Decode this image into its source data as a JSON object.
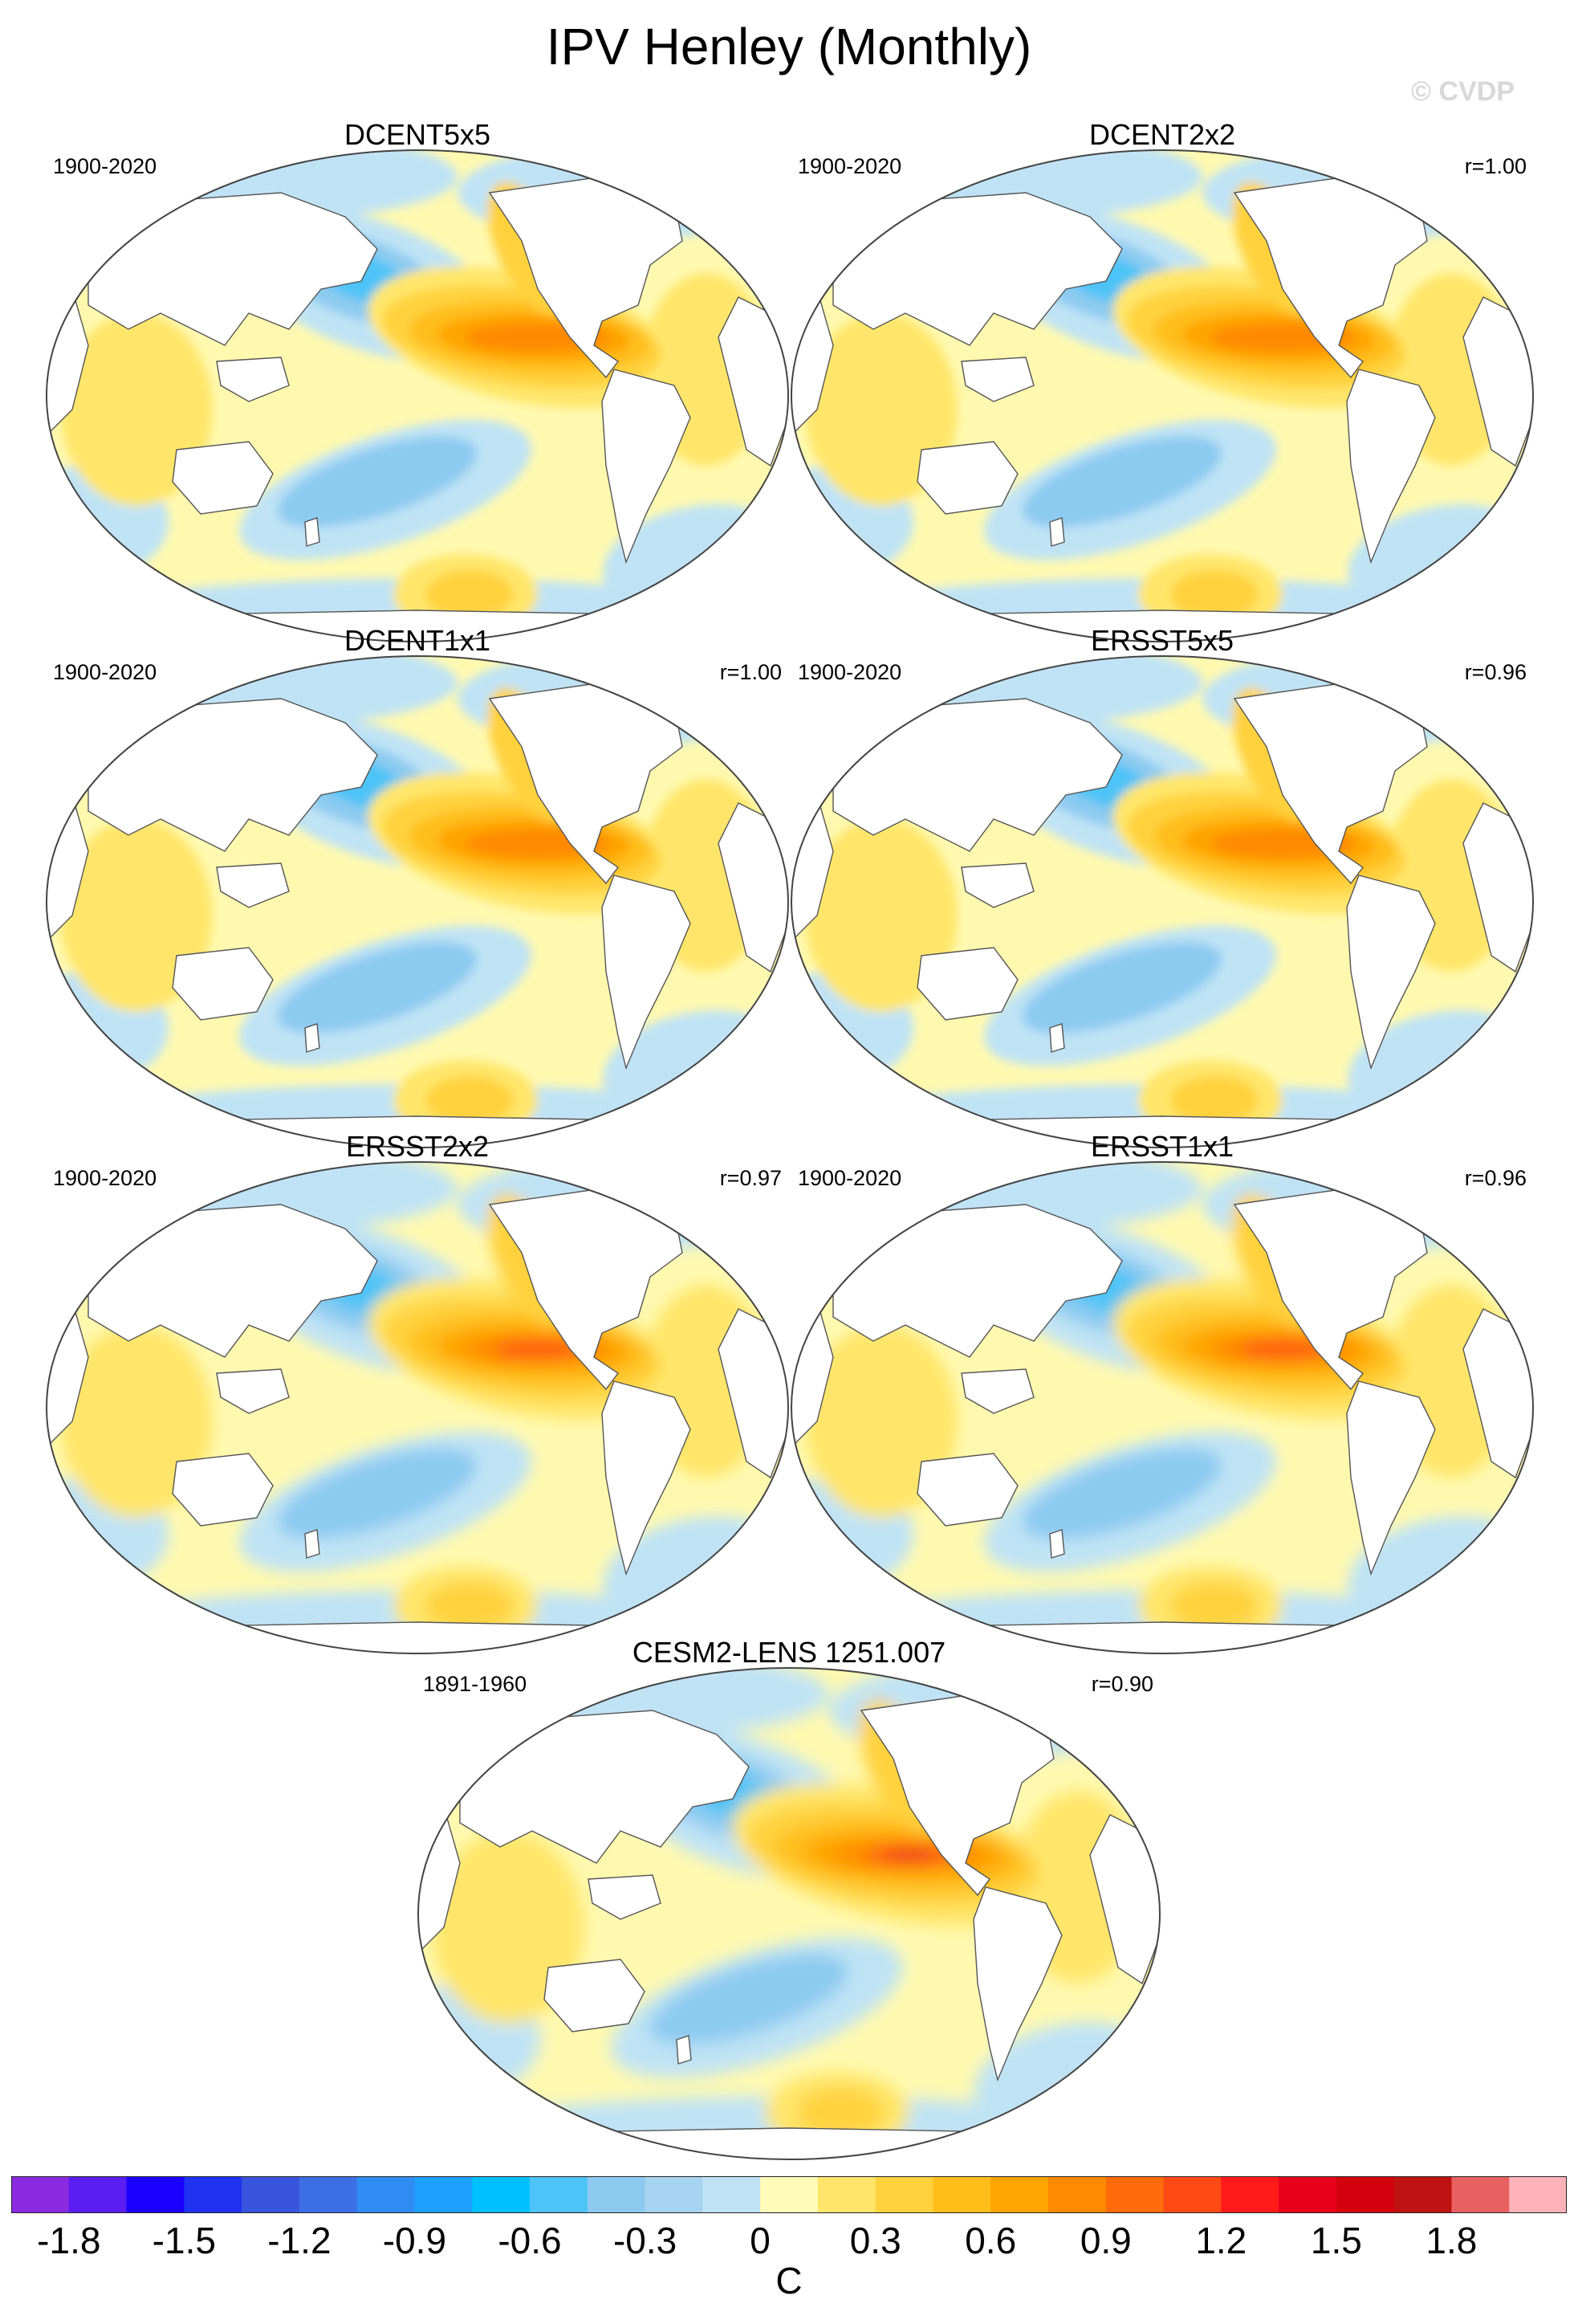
{
  "title": "IPV Henley (Monthly)",
  "watermark": "© CVDP",
  "panels": [
    {
      "title": "DCENT5x5",
      "years": "1900-2020",
      "r": "",
      "style": "coarse"
    },
    {
      "title": "DCENT2x2",
      "years": "1900-2020",
      "r": "r=1.00",
      "style": "coarse"
    },
    {
      "title": "DCENT1x1",
      "years": "1900-2020",
      "r": "r=1.00",
      "style": "coarse"
    },
    {
      "title": "ERSST5x5",
      "years": "1900-2020",
      "r": "r=0.96",
      "style": "coarse"
    },
    {
      "title": "ERSST2x2",
      "years": "1900-2020",
      "r": "r=0.97",
      "style": "smooth"
    },
    {
      "title": "ERSST1x1",
      "years": "1900-2020",
      "r": "r=0.96",
      "style": "smooth"
    },
    {
      "title": "CESM2-LENS 1251.007",
      "years": "1891-1960",
      "r": "r=0.90",
      "style": "model"
    }
  ],
  "colorbar": {
    "units": "C",
    "labels": [
      "-1.8",
      "-1.5",
      "-1.2",
      "-0.9",
      "-0.6",
      "-0.3",
      "0",
      "0.3",
      "0.6",
      "0.9",
      "1.2",
      "1.5",
      "1.8"
    ],
    "colors": [
      "#8a2be2",
      "#5a1ef0",
      "#1a00ff",
      "#1e32f0",
      "#3a55dd",
      "#3c6fe6",
      "#2f8cf2",
      "#1ea0ff",
      "#00c0ff",
      "#4dc3f7",
      "#8ccaf0",
      "#a6d3ef",
      "#bfe3f5",
      "#fffbb8",
      "#ffe66b",
      "#ffd23c",
      "#ffbe1a",
      "#ffa400",
      "#ff8a00",
      "#ff6a0a",
      "#ff4a14",
      "#ff1a1a",
      "#e8001a",
      "#d4000e",
      "#bf1212",
      "#e86060",
      "#ffb3b8"
    ]
  },
  "palette": {
    "ocean_base": "#fff9b0",
    "cool_light": "#bfe3f5",
    "cool_mid": "#8ccaf0",
    "cool_strong": "#4dc3f7",
    "warm_1": "#ffe66b",
    "warm_2": "#ffd23c",
    "warm_3": "#ffbe1a",
    "warm_4": "#ffa400",
    "warm_5": "#ff8a00",
    "warm_6": "#ff5a14",
    "warm_7": "#e8101a",
    "land": "#ffffff",
    "coast": "#555555"
  }
}
